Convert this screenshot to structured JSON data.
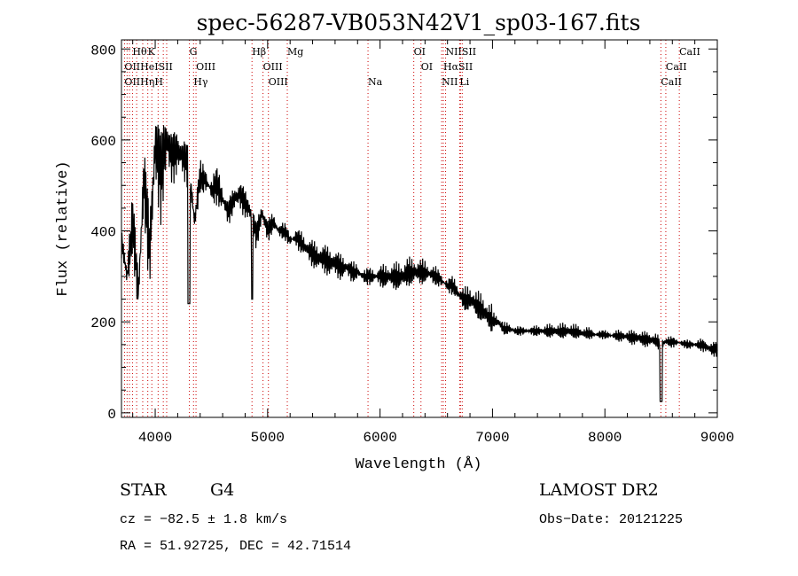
{
  "chart_data": {
    "type": "line",
    "title": "spec-56287-VB053N42V1_sp03-167.fits",
    "xlabel": "Wavelength (Å)",
    "ylabel": "Flux (relative)",
    "xlim": [
      3700,
      9000
    ],
    "ylim": [
      -10,
      820
    ],
    "xticks": [
      4000,
      5000,
      6000,
      7000,
      8000,
      9000
    ],
    "yticks": [
      0,
      200,
      400,
      600,
      800
    ],
    "grid": false,
    "spectrum": {
      "x": [
        3700,
        3750,
        3800,
        3850,
        3900,
        3950,
        4000,
        4050,
        4100,
        4150,
        4200,
        4250,
        4300,
        4350,
        4400,
        4450,
        4500,
        4550,
        4600,
        4650,
        4700,
        4750,
        4800,
        4850,
        4900,
        4950,
        5000,
        5050,
        5100,
        5150,
        5200,
        5250,
        5300,
        5350,
        5400,
        5450,
        5500,
        5550,
        5600,
        5650,
        5700,
        5750,
        5800,
        5850,
        5900,
        5950,
        6000,
        6050,
        6100,
        6150,
        6200,
        6250,
        6300,
        6350,
        6400,
        6450,
        6500,
        6550,
        6600,
        6650,
        6700,
        6750,
        6800,
        6850,
        6900,
        6950,
        7000,
        7050,
        7100,
        7150,
        7200,
        7250,
        7300,
        7350,
        7400,
        7450,
        7500,
        7550,
        7600,
        7650,
        7700,
        7750,
        7800,
        7850,
        7900,
        7950,
        8000,
        8050,
        8100,
        8150,
        8200,
        8250,
        8300,
        8350,
        8400,
        8450,
        8500,
        8550,
        8600,
        8650,
        8700,
        8750,
        8800,
        8850,
        8900,
        8950,
        9000
      ],
      "y": [
        380,
        300,
        420,
        260,
        520,
        350,
        590,
        520,
        600,
        560,
        575,
        560,
        540,
        420,
        520,
        510,
        490,
        500,
        470,
        440,
        470,
        480,
        460,
        440,
        390,
        440,
        400,
        420,
        400,
        400,
        380,
        385,
        375,
        360,
        350,
        340,
        340,
        330,
        330,
        320,
        320,
        310,
        310,
        300,
        300,
        300,
        300,
        300,
        300,
        300,
        300,
        310,
        310,
        310,
        310,
        305,
        300,
        290,
        280,
        280,
        260,
        250,
        250,
        240,
        230,
        215,
        205,
        200,
        185,
        185,
        180,
        180,
        180,
        180,
        180,
        180,
        180,
        180,
        180,
        180,
        180,
        178,
        175,
        175,
        172,
        172,
        172,
        170,
        170,
        168,
        168,
        165,
        165,
        162,
        160,
        160,
        150,
        158,
        155,
        155,
        152,
        150,
        150,
        150,
        145,
        140,
        140
      ]
    },
    "annotations": {
      "row1": [
        {
          "label": "Hθ",
          "x": 3798
        },
        {
          "label": "K",
          "x": 3934
        },
        {
          "label": "G",
          "x": 4304
        },
        {
          "label": "Hβ",
          "x": 4861
        },
        {
          "label": "Mg",
          "x": 5175
        },
        {
          "label": "OI",
          "x": 6300
        },
        {
          "label": "NIISII",
          "x": 6583
        },
        {
          "label": "CaII",
          "x": 8662
        }
      ],
      "row2": [
        {
          "label": "OIIHeISII",
          "x": 3727
        },
        {
          "label": "OIII",
          "x": 4363
        },
        {
          "label": "OIII",
          "x": 4959
        },
        {
          "label": "OI",
          "x": 6364
        },
        {
          "label": "HαSII",
          "x": 6563
        },
        {
          "label": "CaII",
          "x": 8542
        }
      ],
      "row3": [
        {
          "label": "OIIHηH",
          "x": 3727
        },
        {
          "label": "Hγ",
          "x": 4341
        },
        {
          "label": "OIII",
          "x": 5007
        },
        {
          "label": "Na",
          "x": 5893
        },
        {
          "label": "NII",
          "x": 6548
        },
        {
          "label": "Li",
          "x": 6708
        },
        {
          "label": "CaII",
          "x": 8498
        }
      ],
      "lines_x": [
        3727,
        3750,
        3771,
        3798,
        3835,
        3889,
        3934,
        3970,
        4026,
        4072,
        4102,
        4304,
        4341,
        4363,
        4861,
        4959,
        5007,
        5175,
        5893,
        6300,
        6364,
        6548,
        6563,
        6583,
        6708,
        6716,
        6731,
        8498,
        8542,
        8662
      ]
    },
    "colors": {
      "spectrum": "#000000",
      "line_markers": "#cc0000",
      "axes": "#000000"
    }
  },
  "info": {
    "object_class": "STAR",
    "subclass": "G4",
    "survey": "LAMOST DR2",
    "cz": "cz = −82.5 ± 1.8 km/s",
    "obs_date": "Obs−Date: 20121225",
    "coords": "RA =  51.92725, DEC =  42.71514"
  }
}
